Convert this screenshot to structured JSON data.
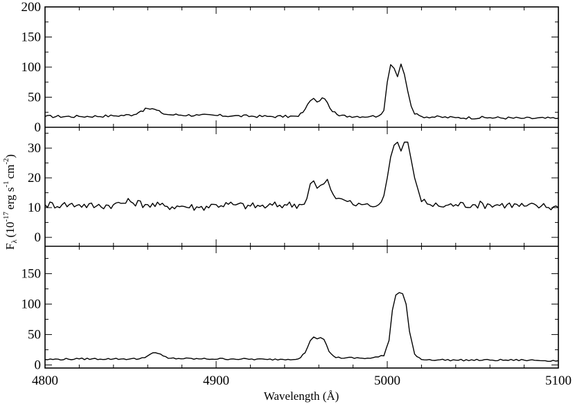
{
  "chart_data": {
    "type": "line",
    "shared_x": {
      "label": "Wavelength (Å)",
      "range": [
        4800,
        5100
      ],
      "ticks": [
        4800,
        4900,
        5000,
        5100
      ]
    },
    "ylabel": {
      "base": "F",
      "sub": "λ",
      "open": "(10",
      "exp1": "-17",
      "mid": "erg s",
      "exp2": "-1",
      "tail": "cm",
      "exp3": "-2",
      "close": ")"
    },
    "panels": [
      {
        "name": "top",
        "ylim": [
          0,
          200
        ],
        "yticks": [
          0,
          50,
          100,
          150,
          200
        ],
        "points": [
          [
            4800,
            18
          ],
          [
            4820,
            18
          ],
          [
            4840,
            19
          ],
          [
            4852,
            21
          ],
          [
            4856,
            27
          ],
          [
            4860,
            31
          ],
          [
            4864,
            30
          ],
          [
            4868,
            24
          ],
          [
            4872,
            21
          ],
          [
            4890,
            20
          ],
          [
            4910,
            19
          ],
          [
            4930,
            18
          ],
          [
            4948,
            18
          ],
          [
            4952,
            30
          ],
          [
            4955,
            44
          ],
          [
            4957,
            48
          ],
          [
            4959,
            42
          ],
          [
            4962,
            49
          ],
          [
            4965,
            41
          ],
          [
            4968,
            26
          ],
          [
            4972,
            19
          ],
          [
            4990,
            18
          ],
          [
            4995,
            19
          ],
          [
            4998,
            28
          ],
          [
            5000,
            75
          ],
          [
            5002,
            104
          ],
          [
            5004,
            98
          ],
          [
            5006,
            84
          ],
          [
            5008,
            105
          ],
          [
            5010,
            88
          ],
          [
            5012,
            60
          ],
          [
            5014,
            35
          ],
          [
            5016,
            22
          ],
          [
            5020,
            18
          ],
          [
            5040,
            16
          ],
          [
            5060,
            16
          ],
          [
            5080,
            15
          ],
          [
            5100,
            15
          ]
        ]
      },
      {
        "name": "middle",
        "ylim": [
          -3,
          37
        ],
        "yticks": [
          0,
          10,
          20,
          30
        ],
        "points": [
          [
            4800,
            11
          ],
          [
            4810,
            11
          ],
          [
            4820,
            11
          ],
          [
            4830,
            10.5
          ],
          [
            4840,
            11
          ],
          [
            4850,
            12
          ],
          [
            4860,
            11
          ],
          [
            4870,
            10.5
          ],
          [
            4880,
            10.5
          ],
          [
            4890,
            10
          ],
          [
            4900,
            11
          ],
          [
            4910,
            11
          ],
          [
            4920,
            10.5
          ],
          [
            4930,
            10.5
          ],
          [
            4940,
            11
          ],
          [
            4950,
            11
          ],
          [
            4953,
            13
          ],
          [
            4955,
            18
          ],
          [
            4957,
            19
          ],
          [
            4959,
            16.5
          ],
          [
            4961,
            17.5
          ],
          [
            4963,
            18
          ],
          [
            4965,
            19.5
          ],
          [
            4967,
            16
          ],
          [
            4970,
            13
          ],
          [
            4975,
            12.5
          ],
          [
            4980,
            11
          ],
          [
            4985,
            11
          ],
          [
            4990,
            10.5
          ],
          [
            4995,
            11
          ],
          [
            4998,
            14
          ],
          [
            5000,
            20
          ],
          [
            5002,
            27
          ],
          [
            5004,
            31
          ],
          [
            5006,
            32
          ],
          [
            5008,
            29
          ],
          [
            5010,
            32
          ],
          [
            5012,
            32
          ],
          [
            5014,
            26
          ],
          [
            5016,
            20
          ],
          [
            5018,
            16
          ],
          [
            5020,
            12
          ],
          [
            5025,
            11
          ],
          [
            5030,
            10.5
          ],
          [
            5040,
            11
          ],
          [
            5050,
            11
          ],
          [
            5060,
            11
          ],
          [
            5070,
            11
          ],
          [
            5080,
            10.5
          ],
          [
            5090,
            10.5
          ],
          [
            5100,
            10
          ]
        ]
      },
      {
        "name": "bottom",
        "ylim": [
          -5,
          195
        ],
        "yticks": [
          0,
          50,
          100,
          150
        ],
        "points": [
          [
            4800,
            9
          ],
          [
            4820,
            10
          ],
          [
            4840,
            10
          ],
          [
            4855,
            10
          ],
          [
            4860,
            15
          ],
          [
            4863,
            20
          ],
          [
            4866,
            19
          ],
          [
            4869,
            15
          ],
          [
            4872,
            11
          ],
          [
            4890,
            10
          ],
          [
            4910,
            10
          ],
          [
            4930,
            9
          ],
          [
            4948,
            10
          ],
          [
            4952,
            20
          ],
          [
            4955,
            40
          ],
          [
            4957,
            46
          ],
          [
            4959,
            43
          ],
          [
            4961,
            45
          ],
          [
            4963,
            42
          ],
          [
            4966,
            22
          ],
          [
            4970,
            12
          ],
          [
            4990,
            11
          ],
          [
            4998,
            15
          ],
          [
            5001,
            40
          ],
          [
            5003,
            90
          ],
          [
            5005,
            115
          ],
          [
            5007,
            119
          ],
          [
            5009,
            117
          ],
          [
            5011,
            100
          ],
          [
            5013,
            55
          ],
          [
            5016,
            18
          ],
          [
            5020,
            9
          ],
          [
            5040,
            8
          ],
          [
            5060,
            8
          ],
          [
            5080,
            8
          ],
          [
            5100,
            7
          ]
        ]
      }
    ]
  }
}
